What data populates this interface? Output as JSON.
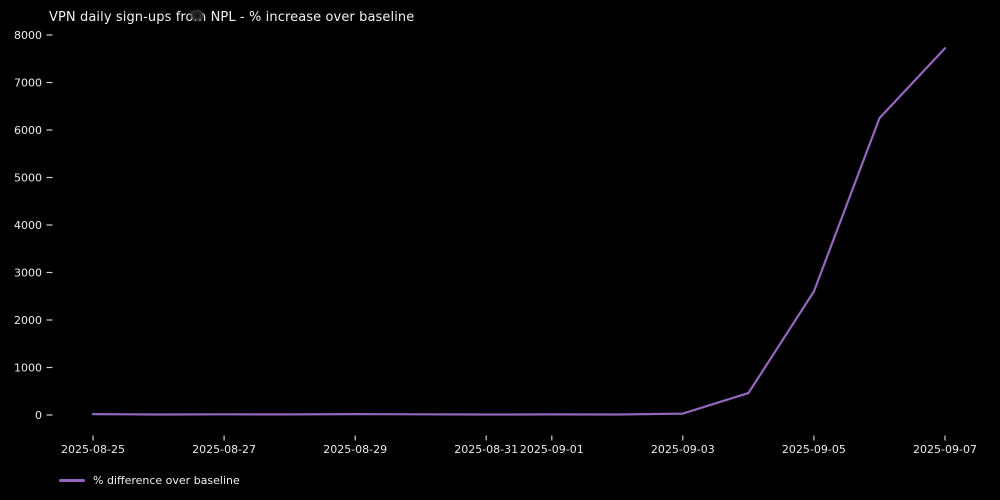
{
  "title": "VPN daily sign-ups from NPL - % increase over baseline",
  "legend": {
    "label": "% difference over baseline"
  },
  "colors": {
    "background": "#000000",
    "line": "#9467bd",
    "title_text": "#f2f2f2",
    "tick_text": "#eaeaea",
    "tick_mark": "#cfcfcf"
  },
  "chart_data": {
    "type": "line",
    "title": "VPN daily sign-ups from NPL - % increase over baseline",
    "xlabel": "",
    "ylabel": "",
    "grid": false,
    "legend_position": "lower-left-below-axis",
    "ylim": [
      0,
      8000
    ],
    "y_ticks": [
      0,
      1000,
      2000,
      3000,
      4000,
      5000,
      6000,
      7000,
      8000
    ],
    "x": [
      "2025-08-25",
      "2025-08-26",
      "2025-08-27",
      "2025-08-28",
      "2025-08-29",
      "2025-08-30",
      "2025-08-31",
      "2025-09-01",
      "2025-09-02",
      "2025-09-03",
      "2025-09-04",
      "2025-09-05",
      "2025-09-06",
      "2025-09-07"
    ],
    "x_tick_labels": [
      {
        "label": "2025-08-25",
        "index": 0
      },
      {
        "label": "2025-08-27",
        "index": 2
      },
      {
        "label": "2025-08-29",
        "index": 4
      },
      {
        "label": "2025-08-31",
        "index": 6
      },
      {
        "label": "2025-09-01",
        "index": 7
      },
      {
        "label": "2025-09-03",
        "index": 9
      },
      {
        "label": "2025-09-05",
        "index": 11
      },
      {
        "label": "2025-09-07",
        "index": 13
      }
    ],
    "series": [
      {
        "name": "% difference over baseline",
        "color": "#9467bd",
        "values": [
          20,
          10,
          15,
          12,
          18,
          15,
          10,
          12,
          10,
          30,
          460,
          2600,
          6250,
          7720
        ]
      }
    ]
  }
}
